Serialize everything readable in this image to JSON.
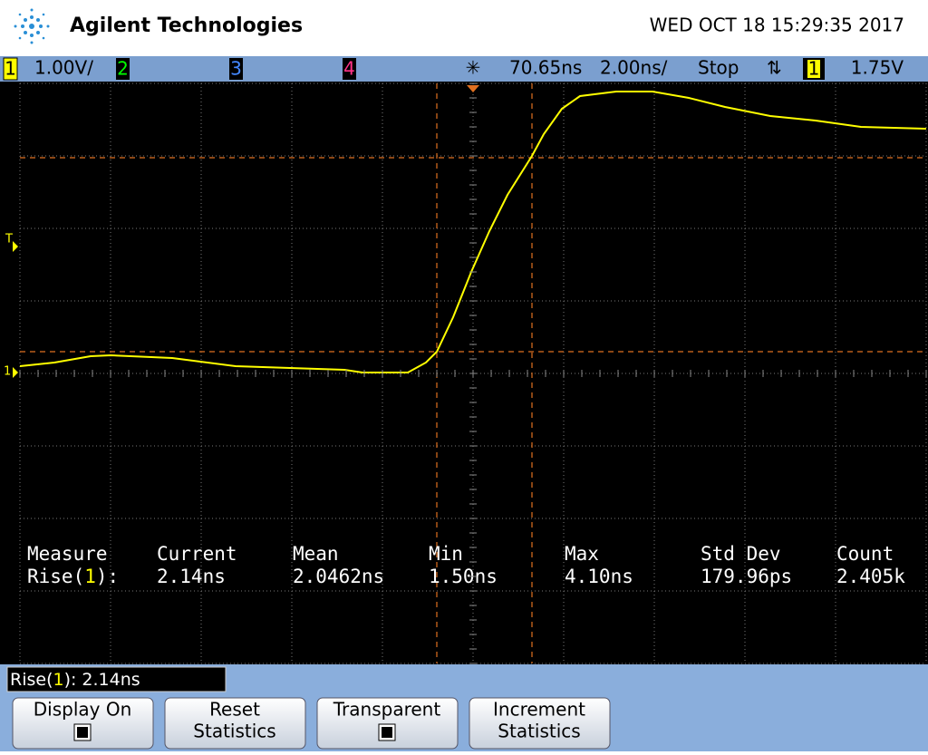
{
  "header": {
    "brand": "Agilent Technologies",
    "datetime": "WED OCT 18 15:29:35 2017"
  },
  "status_bar": {
    "ch1": "1",
    "ch1_scale": "1.00V/",
    "ch2": "2",
    "ch3": "3",
    "ch4": "4",
    "delay": "70.65ns",
    "timebase": "2.00ns/",
    "run_state": "Stop",
    "trigger_mode": "⇅",
    "trigger_source": "1",
    "trigger_level": "1.75V"
  },
  "screen": {
    "trigger_marker": "T",
    "ground_marker": "1"
  },
  "measurements": {
    "headers": [
      "Measure",
      "Current",
      "Mean",
      "Min",
      "Max",
      "Std Dev",
      "Count"
    ],
    "row": {
      "label_prefix": "Rise(",
      "label_source": "1",
      "label_suffix": "):",
      "values": [
        "2.14ns",
        "2.0462ns",
        "1.50ns",
        "4.10ns",
        "179.96ps",
        "2.405k"
      ]
    }
  },
  "readout": {
    "prefix": "Rise(",
    "source": "1",
    "suffix": "): 2.14ns"
  },
  "softkeys": [
    {
      "lines": [
        "Display On"
      ],
      "checkbox": true
    },
    {
      "lines": [
        "Reset",
        "Statistics"
      ],
      "checkbox": false
    },
    {
      "lines": [
        "Transparent"
      ],
      "checkbox": true
    },
    {
      "lines": [
        "Increment",
        "Statistics"
      ],
      "checkbox": false
    }
  ]
}
